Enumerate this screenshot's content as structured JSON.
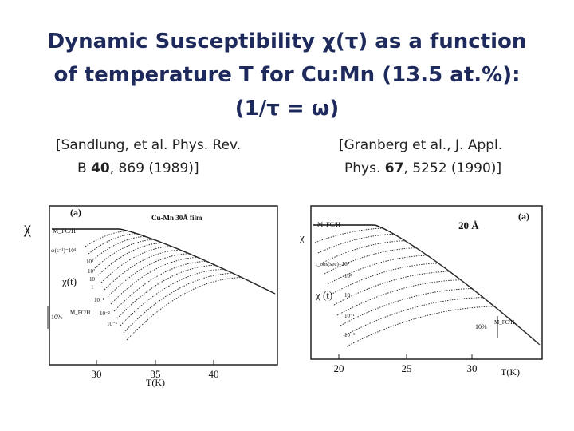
{
  "title_lines": [
    "Dynamic Susceptibility χ(τ) as a function",
    "of temperature T for Cu:Mn (13.5 at.%):",
    "(1/τ = ω)"
  ],
  "references": [
    {
      "line1": "[Sandlung, et al. Phys. Rev.",
      "line2_before": "B ",
      "volume": "40",
      "line2_after": ", 869 (1989)]"
    },
    {
      "line1": "[Granberg et al., J. Appl.",
      "line2_before": "Phys.  ",
      "volume": "67",
      "line2_after": ", 5252 (1990)]"
    }
  ],
  "figures": [
    {
      "panel": "(a)",
      "sample": "Cu-Mn 30Å film",
      "y_label": "χ",
      "envelope_label": "M_FC/H",
      "chi_t_label": "χ(t)",
      "scale_label": "10%",
      "scale_unit": "M_FC/H",
      "x_label": "T(K)",
      "xticks": [
        "30",
        "35",
        "40"
      ],
      "series_labels": [
        "ω(s⁻¹)=10⁴",
        "10³",
        "10²",
        "10",
        "1",
        "10⁻¹",
        "10⁻²",
        "10⁻³"
      ]
    },
    {
      "panel": "(a)",
      "sample": "20 Å",
      "y_label": "χ",
      "envelope_label": "M_FC/H",
      "chi_t_label": "χ (t)",
      "scale_label": "10%",
      "scale_unit": "M_FC/H",
      "x_label": "T(K)",
      "xticks": [
        "20",
        "25",
        "30"
      ],
      "series_labels": [
        "t_obs(sec)=10⁴",
        "10³",
        "10",
        "10⁻¹",
        "10⁻³"
      ]
    }
  ]
}
